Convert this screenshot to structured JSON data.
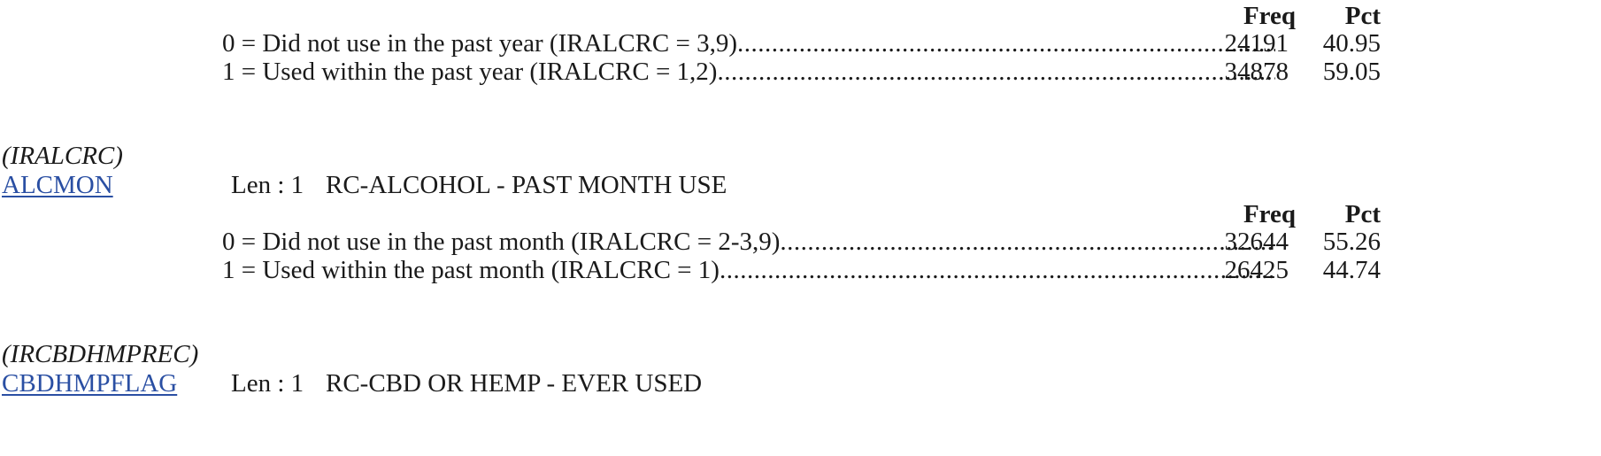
{
  "headers": {
    "freq": "Freq",
    "pct": "Pct"
  },
  "block1": {
    "responses": [
      {
        "label": "0 = Did not use in the past year (IRALCRC = 3,9) ",
        "freq": "24191",
        "pct": "40.95"
      },
      {
        "label": "1 = Used within the past year (IRALCRC = 1,2) ",
        "freq": "34878",
        "pct": "59.05"
      }
    ]
  },
  "block2": {
    "alias": "(IRALCRC)",
    "varname": "ALCMON",
    "len": "Len : 1",
    "description": "RC-ALCOHOL - PAST MONTH USE",
    "responses": [
      {
        "label": "0 = Did not use in the past month (IRALCRC = 2-3,9)",
        "freq": "32644",
        "pct": "55.26"
      },
      {
        "label": "1 = Used within the past month (IRALCRC = 1)",
        "freq": "26425",
        "pct": "44.74"
      }
    ]
  },
  "block3": {
    "alias": "(IRCBDHMPREC)",
    "varname": "CBDHMPFLAG",
    "len": "Len : 1",
    "description": "RC-CBD OR HEMP - EVER USED"
  }
}
